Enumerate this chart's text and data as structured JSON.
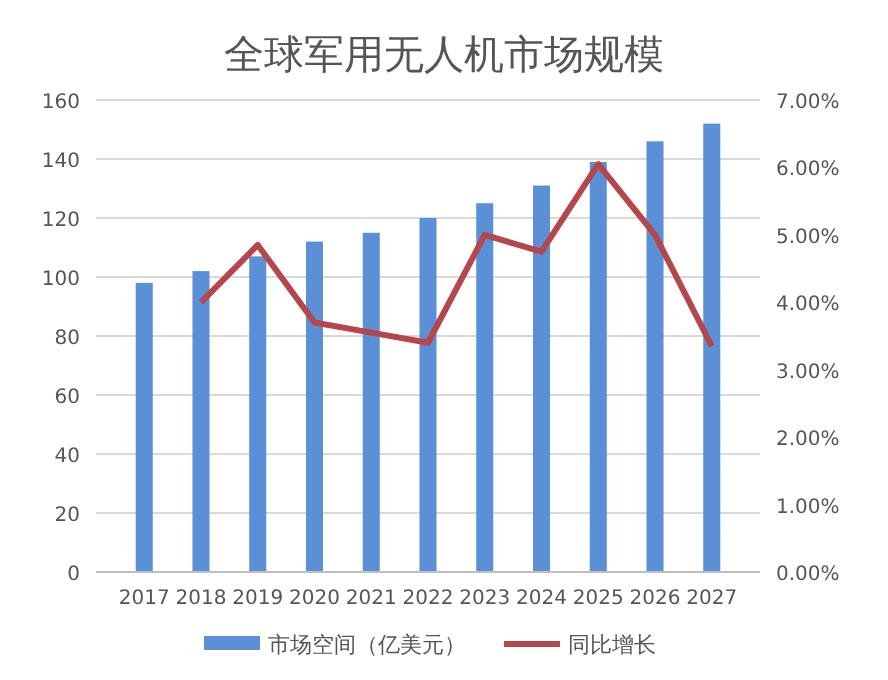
{
  "chart_data": {
    "type": "bar",
    "title": "全球军用无人机市场规模",
    "categories": [
      "2017",
      "2018",
      "2019",
      "2020",
      "2021",
      "2022",
      "2023",
      "2024",
      "2025",
      "2026",
      "2027"
    ],
    "series": [
      {
        "name": "市场空间（亿美元）",
        "color": "#5b8fd6",
        "values": [
          98,
          102,
          107,
          112,
          115,
          120,
          125,
          131,
          139,
          146,
          152
        ]
      },
      {
        "name": "同比增长",
        "type": "line",
        "axis": "y2",
        "color": "#b5464b",
        "values": [
          null,
          4.0,
          4.85,
          3.7,
          3.55,
          3.4,
          5.0,
          4.75,
          6.05,
          5.0,
          3.35
        ]
      }
    ],
    "ylim": [
      0,
      160
    ],
    "yticks": [
      0,
      20,
      40,
      60,
      80,
      100,
      120,
      140,
      160
    ],
    "y2lim": [
      0,
      7
    ],
    "y2ticks": [
      {
        "value": 0,
        "label": "0.00%"
      },
      {
        "value": 1,
        "label": "1.00%"
      },
      {
        "value": 2,
        "label": "2.00%"
      },
      {
        "value": 3,
        "label": "3.00%"
      },
      {
        "value": 4,
        "label": "4.00%"
      },
      {
        "value": 5,
        "label": "5.00%"
      },
      {
        "value": 6,
        "label": "6.00%"
      },
      {
        "value": 7,
        "label": "7.00%"
      }
    ],
    "grid": "y",
    "legend": "bottom"
  }
}
